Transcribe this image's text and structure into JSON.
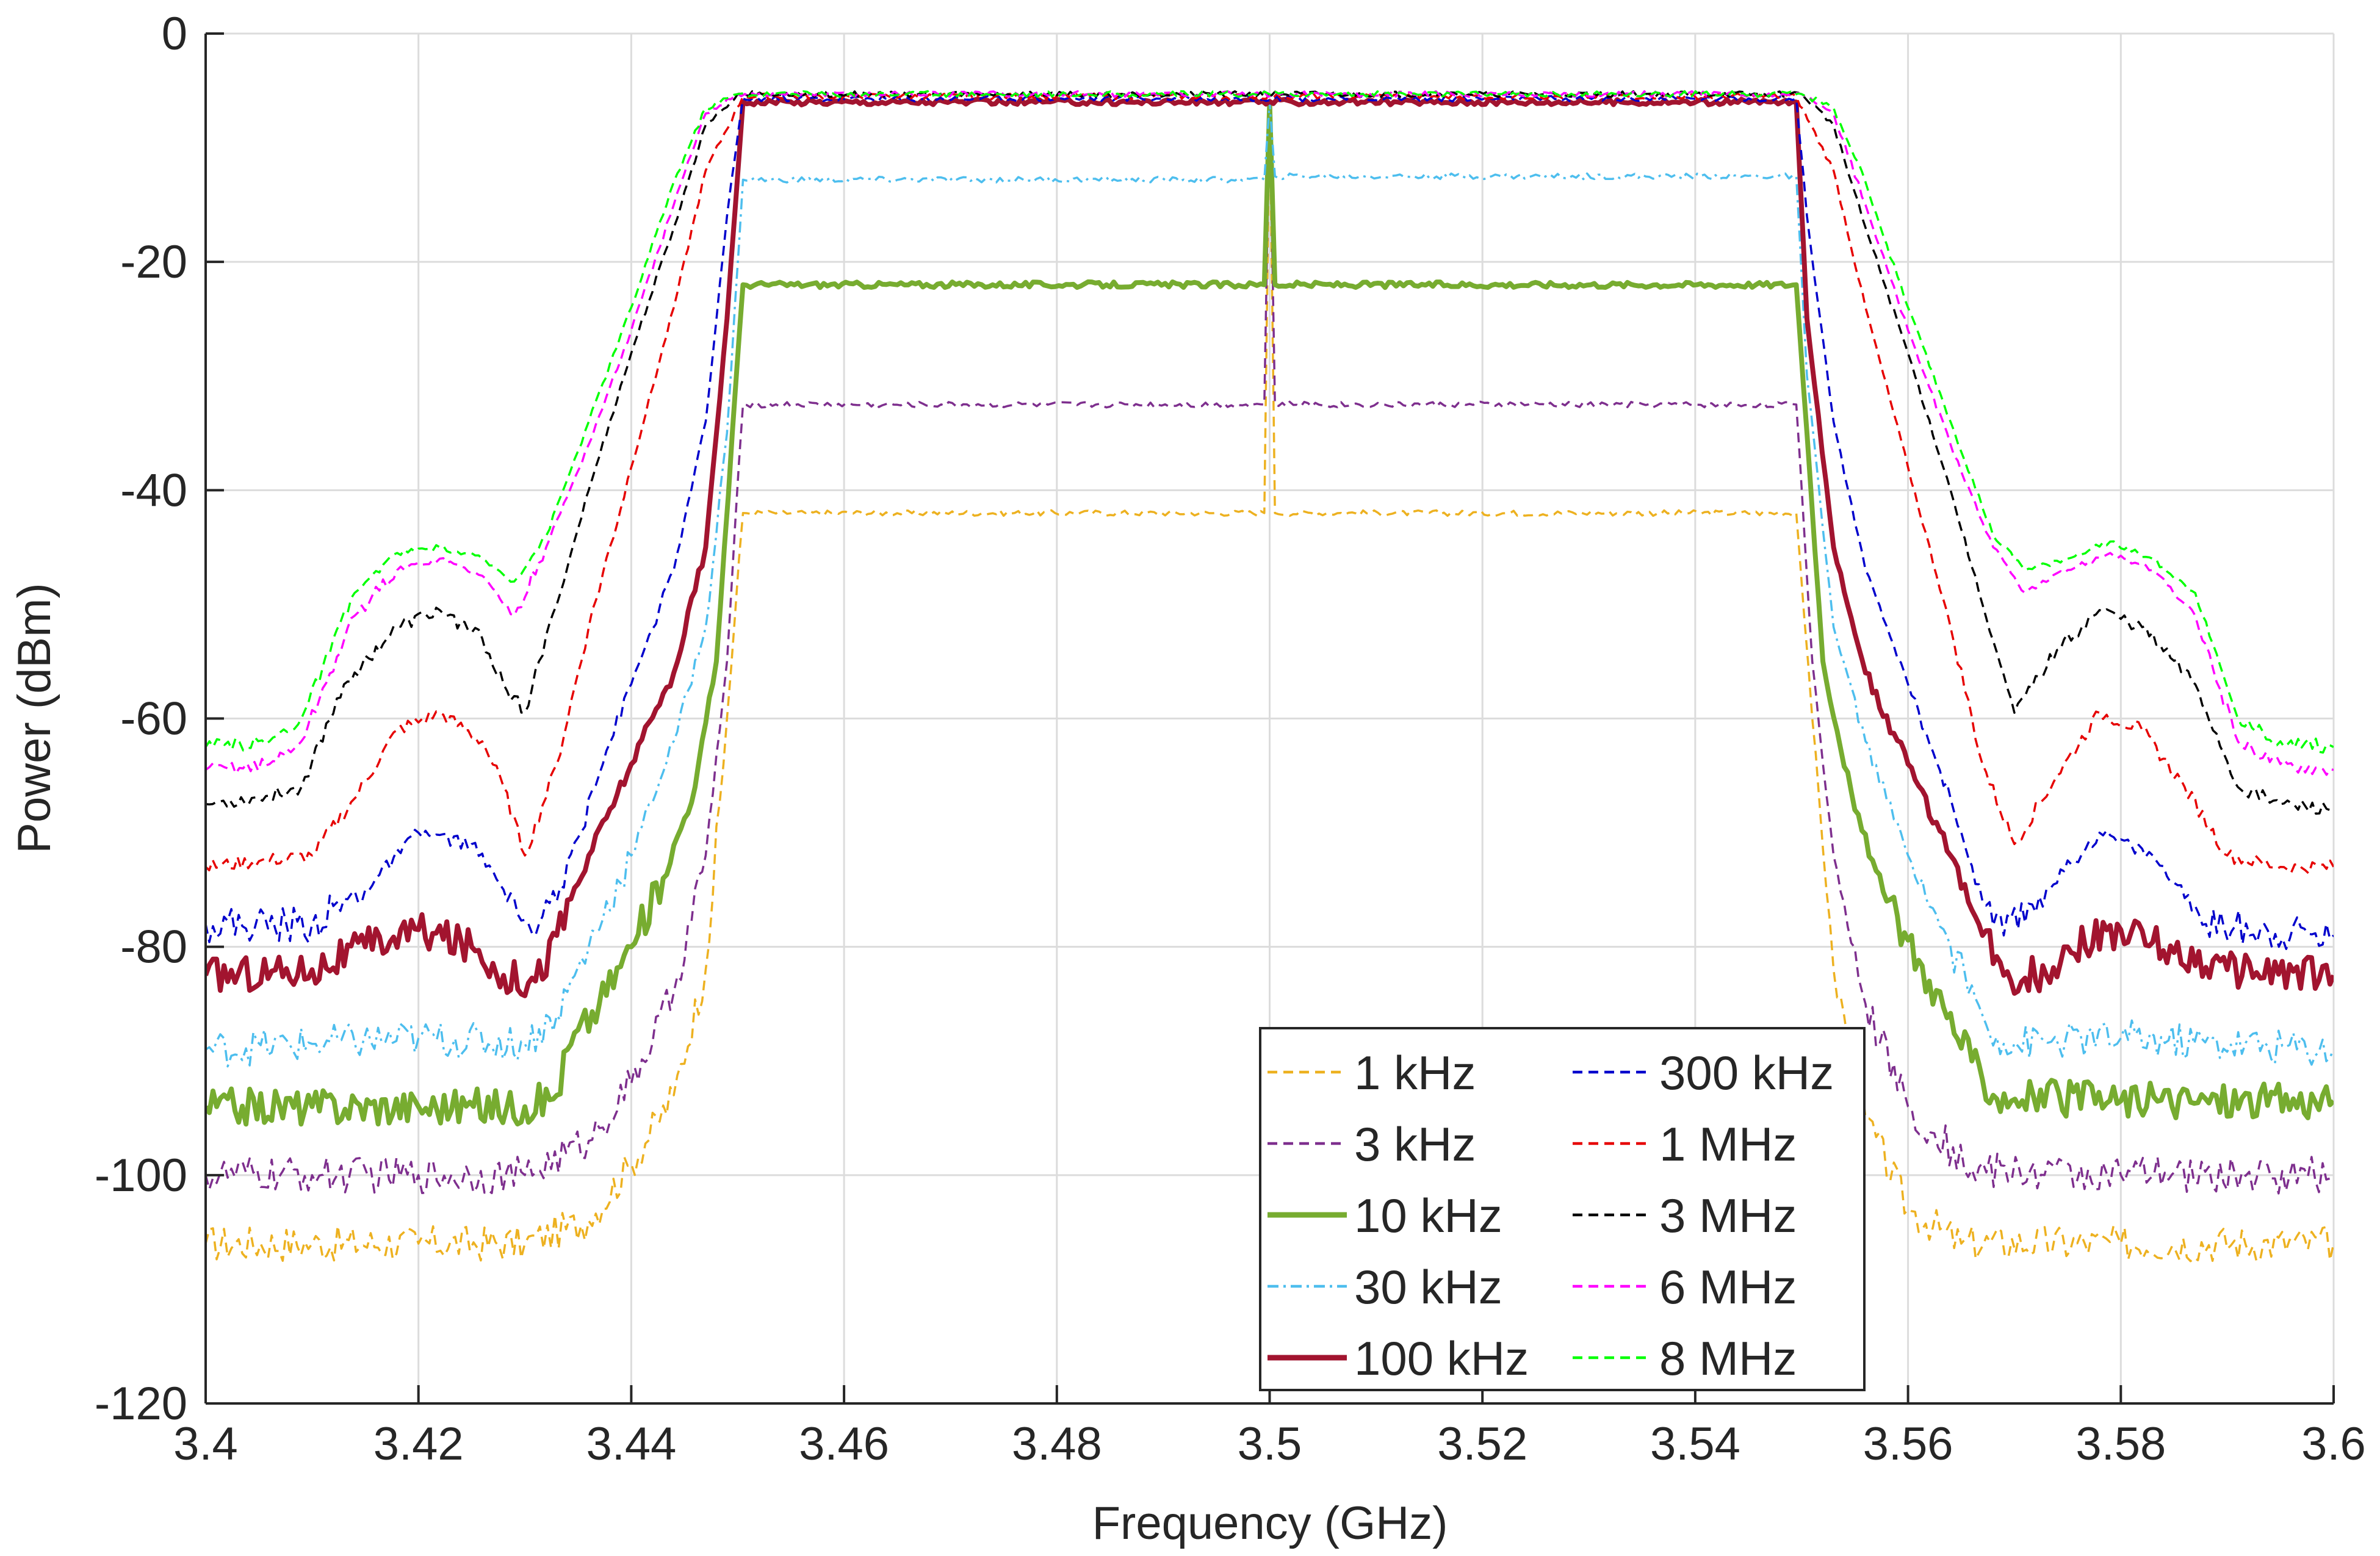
{
  "chart_data": {
    "type": "line",
    "xlabel": "Frequency (GHz)",
    "ylabel": "Power (dBm)",
    "xlim": [
      3.4,
      3.6
    ],
    "ylim": [
      -120,
      0
    ],
    "xticks": [
      3.4,
      3.42,
      3.44,
      3.46,
      3.48,
      3.5,
      3.52,
      3.54,
      3.56,
      3.58,
      3.6
    ],
    "xtick_labels": [
      "3.4",
      "3.42",
      "3.44",
      "3.46",
      "3.48",
      "3.5",
      "3.52",
      "3.54",
      "3.56",
      "3.58",
      "3.6"
    ],
    "yticks": [
      0,
      -20,
      -40,
      -60,
      -80,
      -100,
      -120
    ],
    "ytick_labels": [
      "0",
      "-20",
      "-40",
      "-60",
      "-80",
      "-100",
      "-120"
    ],
    "grid": true,
    "legend_placement": "bottom-right",
    "series": [
      {
        "name": "1 kHz",
        "color": "#EDB120",
        "dash": "dashed",
        "points": [
          [
            3.4,
            -106
          ],
          [
            3.41,
            -106
          ],
          [
            3.42,
            -106
          ],
          [
            3.43,
            -106
          ],
          [
            3.436,
            -104
          ],
          [
            3.44,
            -99
          ],
          [
            3.444,
            -93
          ],
          [
            3.447,
            -82
          ],
          [
            3.449,
            -60
          ],
          [
            3.4505,
            -42
          ],
          [
            3.4995,
            -42
          ],
          [
            3.5,
            -6
          ],
          [
            3.5005,
            -42
          ],
          [
            3.5495,
            -42
          ],
          [
            3.551,
            -60
          ],
          [
            3.553,
            -82
          ],
          [
            3.556,
            -95
          ],
          [
            3.56,
            -103
          ],
          [
            3.565,
            -106
          ],
          [
            3.58,
            -106
          ],
          [
            3.6,
            -106
          ]
        ]
      },
      {
        "name": "3 kHz",
        "color": "#7E2F8E",
        "dash": "dashed",
        "points": [
          [
            3.4,
            -100
          ],
          [
            3.41,
            -100
          ],
          [
            3.42,
            -100
          ],
          [
            3.43,
            -100
          ],
          [
            3.436,
            -97
          ],
          [
            3.44,
            -92
          ],
          [
            3.444,
            -84
          ],
          [
            3.447,
            -72
          ],
          [
            3.449,
            -55
          ],
          [
            3.4505,
            -32.5
          ],
          [
            3.4995,
            -32.5
          ],
          [
            3.5,
            -6
          ],
          [
            3.5005,
            -32.5
          ],
          [
            3.5495,
            -32.5
          ],
          [
            3.551,
            -55
          ],
          [
            3.553,
            -72
          ],
          [
            3.556,
            -85
          ],
          [
            3.56,
            -94
          ],
          [
            3.566,
            -99.5
          ],
          [
            3.58,
            -100
          ],
          [
            3.6,
            -100
          ]
        ]
      },
      {
        "name": "10 kHz",
        "color": "#77AC30",
        "dash": "solid",
        "points": [
          [
            3.4,
            -94
          ],
          [
            3.41,
            -94
          ],
          [
            3.42,
            -94
          ],
          [
            3.43,
            -94
          ],
          [
            3.433,
            -93
          ],
          [
            3.434,
            -89
          ],
          [
            3.437,
            -85
          ],
          [
            3.44,
            -80
          ],
          [
            3.443,
            -74
          ],
          [
            3.446,
            -66
          ],
          [
            3.448,
            -55
          ],
          [
            3.4495,
            -35
          ],
          [
            3.4505,
            -22
          ],
          [
            3.4995,
            -22
          ],
          [
            3.5,
            -6
          ],
          [
            3.5005,
            -22
          ],
          [
            3.5495,
            -22
          ],
          [
            3.5505,
            -35
          ],
          [
            3.552,
            -55
          ],
          [
            3.555,
            -68
          ],
          [
            3.558,
            -76
          ],
          [
            3.562,
            -83
          ],
          [
            3.566,
            -90
          ],
          [
            3.568,
            -93
          ],
          [
            3.58,
            -93.5
          ],
          [
            3.6,
            -93.5
          ]
        ]
      },
      {
        "name": "30 kHz",
        "color": "#4DBEEE",
        "dash": "dashdot",
        "points": [
          [
            3.4,
            -89
          ],
          [
            3.41,
            -88.5
          ],
          [
            3.42,
            -88
          ],
          [
            3.43,
            -88.5
          ],
          [
            3.433,
            -86
          ],
          [
            3.436,
            -80
          ],
          [
            3.44,
            -72
          ],
          [
            3.444,
            -62
          ],
          [
            3.447,
            -52
          ],
          [
            3.449,
            -35
          ],
          [
            3.4505,
            -12.8
          ],
          [
            3.4995,
            -12.8
          ],
          [
            3.5,
            -6
          ],
          [
            3.5005,
            -12.5
          ],
          [
            3.5495,
            -12.5
          ],
          [
            3.5505,
            -30
          ],
          [
            3.553,
            -52
          ],
          [
            3.556,
            -62
          ],
          [
            3.56,
            -72
          ],
          [
            3.564,
            -80
          ],
          [
            3.567,
            -86
          ],
          [
            3.569,
            -88.5
          ],
          [
            3.58,
            -88
          ],
          [
            3.6,
            -89
          ]
        ]
      },
      {
        "name": "100 kHz",
        "color": "#A2142F",
        "dash": "solid",
        "points": [
          [
            3.4,
            -82.5
          ],
          [
            3.41,
            -82
          ],
          [
            3.415,
            -80
          ],
          [
            3.42,
            -78.5
          ],
          [
            3.425,
            -80
          ],
          [
            3.428,
            -82.5
          ],
          [
            3.431,
            -83
          ],
          [
            3.433,
            -79
          ],
          [
            3.436,
            -72
          ],
          [
            3.44,
            -64
          ],
          [
            3.444,
            -56
          ],
          [
            3.447,
            -45
          ],
          [
            3.449,
            -25
          ],
          [
            3.4505,
            -6
          ],
          [
            3.5495,
            -6
          ],
          [
            3.5505,
            -25
          ],
          [
            3.553,
            -45
          ],
          [
            3.556,
            -56
          ],
          [
            3.56,
            -64
          ],
          [
            3.564,
            -72
          ],
          [
            3.567,
            -79
          ],
          [
            3.569,
            -82.5
          ],
          [
            3.573,
            -82.5
          ],
          [
            3.575,
            -80
          ],
          [
            3.58,
            -78.5
          ],
          [
            3.585,
            -80.5
          ],
          [
            3.59,
            -82
          ],
          [
            3.6,
            -82.5
          ]
        ]
      },
      {
        "name": "300 kHz",
        "color": "#0000CC",
        "dash": "dashed",
        "points": [
          [
            3.4,
            -78
          ],
          [
            3.41,
            -78
          ],
          [
            3.415,
            -75
          ],
          [
            3.42,
            -70
          ],
          [
            3.425,
            -71
          ],
          [
            3.428,
            -75
          ],
          [
            3.431,
            -79
          ],
          [
            3.433,
            -76
          ],
          [
            3.436,
            -67
          ],
          [
            3.44,
            -57
          ],
          [
            3.444,
            -47
          ],
          [
            3.447,
            -34
          ],
          [
            3.449,
            -16
          ],
          [
            3.4505,
            -5.7
          ],
          [
            3.5495,
            -5.7
          ],
          [
            3.5505,
            -16
          ],
          [
            3.553,
            -34
          ],
          [
            3.556,
            -47
          ],
          [
            3.56,
            -57
          ],
          [
            3.564,
            -67
          ],
          [
            3.567,
            -76
          ],
          [
            3.569,
            -79
          ],
          [
            3.573,
            -75
          ],
          [
            3.578,
            -70
          ],
          [
            3.583,
            -72
          ],
          [
            3.588,
            -78
          ],
          [
            3.6,
            -79
          ]
        ]
      },
      {
        "name": "1 MHz",
        "color": "#E60000",
        "dash": "dashed",
        "points": [
          [
            3.4,
            -73
          ],
          [
            3.405,
            -72.5
          ],
          [
            3.41,
            -72
          ],
          [
            3.414,
            -67
          ],
          [
            3.418,
            -61
          ],
          [
            3.422,
            -59.5
          ],
          [
            3.426,
            -62
          ],
          [
            3.428,
            -66
          ],
          [
            3.43,
            -72
          ],
          [
            3.433,
            -64
          ],
          [
            3.436,
            -52
          ],
          [
            3.44,
            -38
          ],
          [
            3.444,
            -24
          ],
          [
            3.447,
            -12
          ],
          [
            3.4505,
            -5.5
          ],
          [
            3.5495,
            -5.5
          ],
          [
            3.553,
            -12
          ],
          [
            3.556,
            -24
          ],
          [
            3.56,
            -38
          ],
          [
            3.564,
            -52
          ],
          [
            3.567,
            -64
          ],
          [
            3.57,
            -71
          ],
          [
            3.574,
            -65
          ],
          [
            3.578,
            -59.5
          ],
          [
            3.582,
            -61
          ],
          [
            3.586,
            -66
          ],
          [
            3.59,
            -72
          ],
          [
            3.595,
            -73
          ],
          [
            3.6,
            -73
          ]
        ]
      },
      {
        "name": "3 MHz",
        "color": "#000000",
        "dash": "dashed",
        "points": [
          [
            3.4,
            -67.5
          ],
          [
            3.405,
            -67
          ],
          [
            3.409,
            -66
          ],
          [
            3.413,
            -57
          ],
          [
            3.418,
            -52
          ],
          [
            3.422,
            -50.5
          ],
          [
            3.426,
            -53
          ],
          [
            3.428,
            -57
          ],
          [
            3.43,
            -59.5
          ],
          [
            3.433,
            -50
          ],
          [
            3.436,
            -40
          ],
          [
            3.44,
            -28
          ],
          [
            3.444,
            -17
          ],
          [
            3.447,
            -8
          ],
          [
            3.45,
            -5.3
          ],
          [
            3.55,
            -5.3
          ],
          [
            3.553,
            -8
          ],
          [
            3.556,
            -17
          ],
          [
            3.56,
            -28
          ],
          [
            3.564,
            -40
          ],
          [
            3.567,
            -50
          ],
          [
            3.57,
            -59.5
          ],
          [
            3.574,
            -54
          ],
          [
            3.578,
            -50.5
          ],
          [
            3.582,
            -52
          ],
          [
            3.587,
            -57
          ],
          [
            3.591,
            -66
          ],
          [
            3.595,
            -67.5
          ],
          [
            3.6,
            -68
          ]
        ]
      },
      {
        "name": "6 MHz",
        "color": "#FF00FF",
        "dash": "dashed",
        "points": [
          [
            3.4,
            -64.5
          ],
          [
            3.406,
            -64
          ],
          [
            3.409,
            -62
          ],
          [
            3.414,
            -51
          ],
          [
            3.418,
            -47
          ],
          [
            3.422,
            -46
          ],
          [
            3.426,
            -47.5
          ],
          [
            3.429,
            -51
          ],
          [
            3.432,
            -45
          ],
          [
            3.436,
            -36
          ],
          [
            3.44,
            -26
          ],
          [
            3.444,
            -15
          ],
          [
            3.447,
            -7
          ],
          [
            3.45,
            -5.3
          ],
          [
            3.55,
            -5.3
          ],
          [
            3.553,
            -7
          ],
          [
            3.556,
            -15
          ],
          [
            3.56,
            -26
          ],
          [
            3.564,
            -36
          ],
          [
            3.568,
            -45
          ],
          [
            3.571,
            -49
          ],
          [
            3.575,
            -47
          ],
          [
            3.579,
            -45.5
          ],
          [
            3.583,
            -47
          ],
          [
            3.587,
            -51
          ],
          [
            3.591,
            -62
          ],
          [
            3.595,
            -64
          ],
          [
            3.6,
            -64.5
          ]
        ]
      },
      {
        "name": "8 MHz",
        "color": "#00FF00",
        "dash": "dashed",
        "points": [
          [
            3.4,
            -62.5
          ],
          [
            3.406,
            -62
          ],
          [
            3.409,
            -60
          ],
          [
            3.414,
            -49
          ],
          [
            3.418,
            -45.5
          ],
          [
            3.422,
            -45
          ],
          [
            3.426,
            -46
          ],
          [
            3.429,
            -48
          ],
          [
            3.432,
            -44
          ],
          [
            3.436,
            -34
          ],
          [
            3.44,
            -24
          ],
          [
            3.444,
            -13
          ],
          [
            3.447,
            -6.5
          ],
          [
            3.45,
            -5.3
          ],
          [
            3.55,
            -5.3
          ],
          [
            3.553,
            -6.5
          ],
          [
            3.556,
            -13
          ],
          [
            3.56,
            -24
          ],
          [
            3.564,
            -34
          ],
          [
            3.568,
            -44
          ],
          [
            3.571,
            -47
          ],
          [
            3.575,
            -46
          ],
          [
            3.579,
            -44.5
          ],
          [
            3.583,
            -46
          ],
          [
            3.587,
            -49
          ],
          [
            3.591,
            -60
          ],
          [
            3.595,
            -62
          ],
          [
            3.6,
            -62.5
          ]
        ]
      }
    ]
  }
}
